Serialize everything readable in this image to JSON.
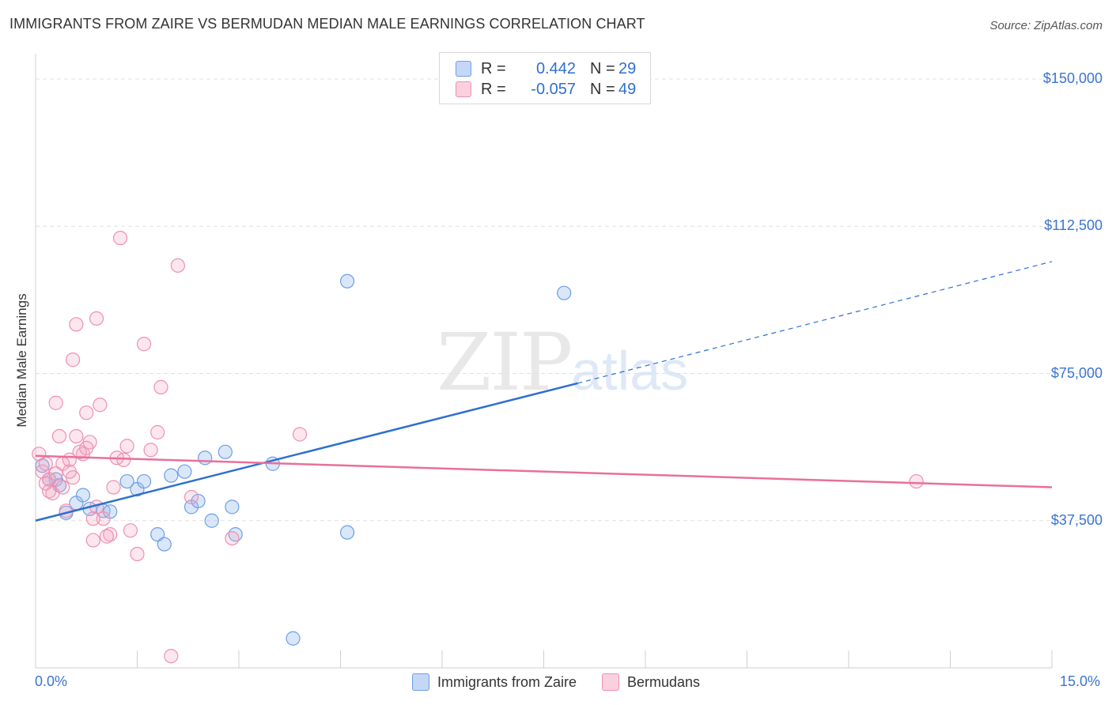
{
  "title": "IMMIGRANTS FROM ZAIRE VS BERMUDAN MEDIAN MALE EARNINGS CORRELATION CHART",
  "source": "Source: ZipAtlas.com",
  "watermark": {
    "zip": "ZIP",
    "atlas": "atlas"
  },
  "legend_top": [
    {
      "r_label": "R =",
      "r_value": "0.442",
      "n_label": "N =",
      "n_value": "29"
    },
    {
      "r_label": "R =",
      "r_value": "-0.057",
      "n_label": "N =",
      "n_value": "49"
    }
  ],
  "chart_data": {
    "type": "scatter",
    "title": "IMMIGRANTS FROM ZAIRE VS BERMUDAN MEDIAN MALE EARNINGS CORRELATION CHART",
    "xlabel": "",
    "ylabel": "Median Male Earnings",
    "xlim": [
      0,
      15
    ],
    "ylim": [
      0,
      150000
    ],
    "x_tick_labels": [
      "0.0%",
      "15.0%"
    ],
    "y_ticks": [
      37500,
      75000,
      112500,
      150000
    ],
    "y_tick_labels": [
      "$37,500",
      "$75,000",
      "$112,500",
      "$150,000"
    ],
    "grid": true,
    "legend_position": "bottom",
    "colors": {
      "zaire": "#6d9ee6",
      "bermudans": "#ef8fae",
      "zaire_line": "#2e6fd0",
      "bermudans_line": "#e8709a"
    },
    "series": [
      {
        "name": "Immigrants from Zaire",
        "r": 0.442,
        "n": 29,
        "points": [
          [
            0.1,
            51500
          ],
          [
            0.3,
            48000
          ],
          [
            0.35,
            46500
          ],
          [
            0.45,
            39500
          ],
          [
            0.6,
            42000
          ],
          [
            0.7,
            44000
          ],
          [
            0.8,
            40500
          ],
          [
            1.0,
            40000
          ],
          [
            1.1,
            39800
          ],
          [
            1.35,
            47500
          ],
          [
            1.5,
            45500
          ],
          [
            1.6,
            47500
          ],
          [
            1.8,
            34000
          ],
          [
            1.9,
            31500
          ],
          [
            2.0,
            49000
          ],
          [
            2.2,
            50000
          ],
          [
            2.3,
            41000
          ],
          [
            2.4,
            42500
          ],
          [
            2.5,
            53500
          ],
          [
            2.6,
            37500
          ],
          [
            2.8,
            55000
          ],
          [
            2.9,
            41000
          ],
          [
            2.95,
            34000
          ],
          [
            3.5,
            52000
          ],
          [
            3.8,
            7500
          ],
          [
            4.6,
            34500
          ],
          [
            4.6,
            98500
          ],
          [
            7.8,
            95500
          ],
          [
            0.2,
            48000
          ]
        ],
        "trend": {
          "x0": 0,
          "y0": 37500,
          "x1": 8.0,
          "y1": 72500,
          "dashed_to": [
            15,
            103500
          ]
        }
      },
      {
        "name": "Bermudans",
        "r": -0.057,
        "n": 49,
        "points": [
          [
            0.05,
            54500
          ],
          [
            0.1,
            50000
          ],
          [
            0.15,
            52000
          ],
          [
            0.2,
            48000
          ],
          [
            0.25,
            44500
          ],
          [
            0.3,
            67500
          ],
          [
            0.35,
            59000
          ],
          [
            0.4,
            52000
          ],
          [
            0.45,
            40000
          ],
          [
            0.5,
            53000
          ],
          [
            0.55,
            78500
          ],
          [
            0.6,
            87500
          ],
          [
            0.7,
            54500
          ],
          [
            0.75,
            65000
          ],
          [
            0.8,
            57500
          ],
          [
            0.85,
            32500
          ],
          [
            0.9,
            89000
          ],
          [
            0.95,
            67000
          ],
          [
            1.0,
            38000
          ],
          [
            1.1,
            34000
          ],
          [
            1.15,
            46000
          ],
          [
            1.2,
            53500
          ],
          [
            1.25,
            109500
          ],
          [
            1.3,
            53000
          ],
          [
            1.35,
            56500
          ],
          [
            1.4,
            35000
          ],
          [
            1.5,
            29000
          ],
          [
            1.6,
            82500
          ],
          [
            1.7,
            55500
          ],
          [
            1.8,
            60000
          ],
          [
            1.85,
            71500
          ],
          [
            2.0,
            3000
          ],
          [
            2.1,
            102500
          ],
          [
            2.3,
            43500
          ],
          [
            2.9,
            33000
          ],
          [
            3.9,
            59500
          ],
          [
            13.0,
            47500
          ],
          [
            0.15,
            47000
          ],
          [
            0.6,
            59000
          ],
          [
            0.65,
            55000
          ],
          [
            0.9,
            41000
          ],
          [
            1.05,
            33500
          ],
          [
            0.4,
            46000
          ],
          [
            0.3,
            49500
          ],
          [
            0.2,
            45000
          ],
          [
            0.75,
            56000
          ],
          [
            0.55,
            48500
          ],
          [
            0.85,
            38000
          ],
          [
            0.5,
            50000
          ]
        ],
        "trend": {
          "x0": 0,
          "y0": 54000,
          "x1": 15,
          "y1": 46000
        }
      }
    ]
  },
  "bottom_legend": [
    {
      "label": "Immigrants from Zaire"
    },
    {
      "label": "Bermudans"
    }
  ]
}
